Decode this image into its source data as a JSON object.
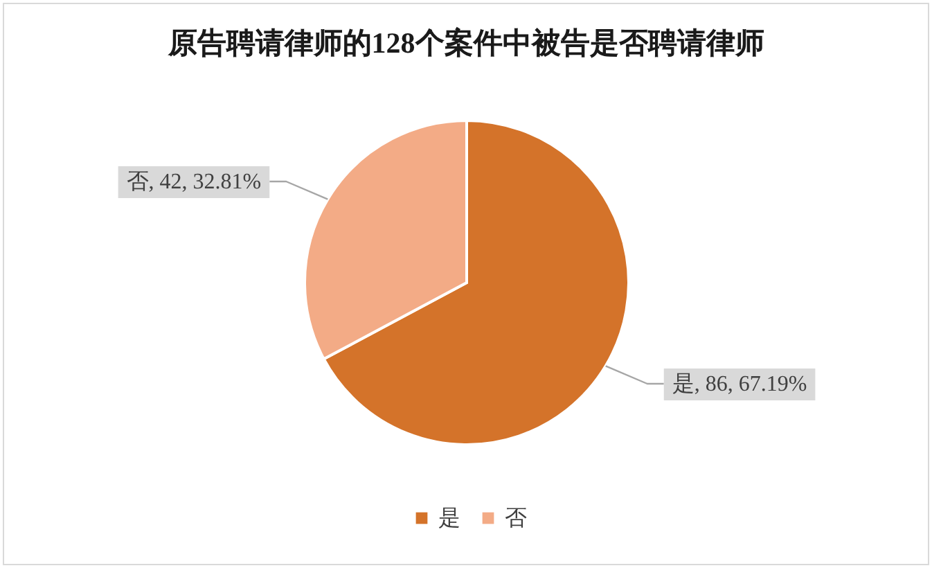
{
  "chart_data": {
    "type": "pie",
    "title": "原告聘请律师的128个案件中被告是否聘请律师",
    "categories": [
      "是",
      "否"
    ],
    "values": [
      86,
      42
    ],
    "colors": [
      "#d4732a",
      "#f3ab86"
    ],
    "value_labels": [
      "是, 86, 67.19%",
      "否, 42, 32.81%"
    ],
    "legend": "bottom"
  }
}
